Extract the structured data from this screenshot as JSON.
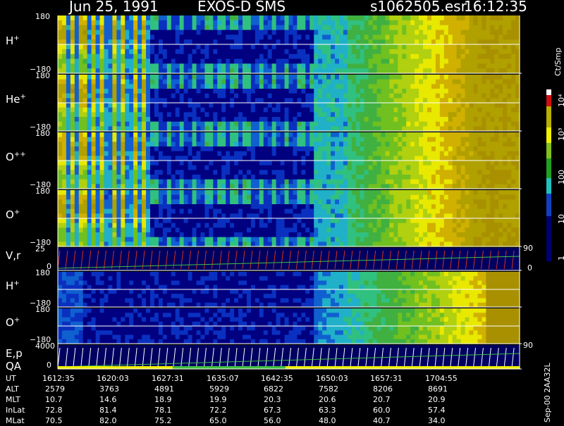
{
  "header": {
    "date": "Jun 25, 1991",
    "instrument": "EXOS-D SMS",
    "file": "s1062505.esr",
    "time": "16:12:35"
  },
  "colorbar": {
    "unit": "Ct/Smp",
    "ticks": [
      "10⁴",
      "10³",
      "100",
      "10",
      "1"
    ],
    "colors": [
      "#ffffff",
      "#d01010",
      "#b8b000",
      "#f0f000",
      "#80c020",
      "#20a020",
      "#20c0c0",
      "#1040c0",
      "#000070"
    ]
  },
  "stamp": "Sep-00 2AA32L",
  "chart_data": {
    "type": "heatmap",
    "panels": [
      {
        "label": "H",
        "charge": "+",
        "ytop": "180",
        "ybot": "−180"
      },
      {
        "label": "He",
        "charge": "+",
        "ytop": "180",
        "ybot": "−180"
      },
      {
        "label": "O",
        "charge": "++",
        "ytop": "180",
        "ybot": "−180"
      },
      {
        "label": "O",
        "charge": "+",
        "ytop": "180",
        "ybot": "−180"
      },
      {
        "label": "V,r",
        "charge": "",
        "ytop": "25",
        "ybot": "0",
        "yright": "90",
        "yright0": "0"
      },
      {
        "label": "H",
        "charge": "+",
        "ytop": "180",
        "ybot": "−180"
      },
      {
        "label": "O",
        "charge": "+",
        "ytop": "180",
        "ybot": "−180"
      },
      {
        "label": "E,p",
        "charge": "",
        "label2": "QA",
        "ytop": "4000",
        "ybot": "0",
        "yright": "90"
      }
    ],
    "ephemeris": {
      "labels": [
        "UT",
        "ALT",
        "MLT",
        "InLat",
        "MLat"
      ],
      "columns": [
        [
          "1612:35",
          "2579",
          "10.7",
          "72.8",
          "70.5"
        ],
        [
          "1620:03",
          "3763",
          "14.6",
          "81.4",
          "82.0"
        ],
        [
          "1627:31",
          "4891",
          "18.9",
          "78.1",
          "75.2"
        ],
        [
          "1635:07",
          "5929",
          "19.9",
          "72.2",
          "65.0"
        ],
        [
          "1642:35",
          "6822",
          "20.3",
          "67.3",
          "56.0"
        ],
        [
          "1650:03",
          "7582",
          "20.6",
          "63.3",
          "48.0"
        ],
        [
          "1657:31",
          "8206",
          "20.7",
          "60.0",
          "40.7"
        ],
        [
          "1704:55",
          "8691",
          "20.9",
          "57.4",
          "34.0"
        ]
      ]
    }
  }
}
